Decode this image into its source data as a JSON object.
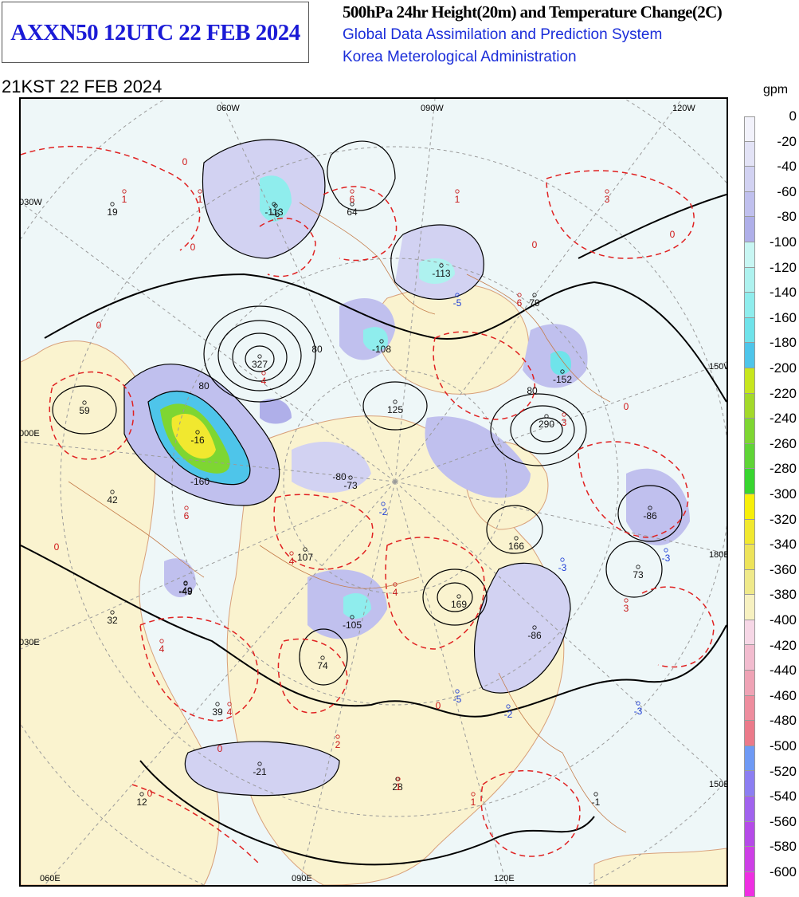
{
  "header": {
    "product_id": "AXXN50 12UTC 22 FEB 2024",
    "title": "500hPa 24hr Height(20m) and Temperature Change(2C)",
    "system": "Global Data Assimilation and Prediction System",
    "agency": "Korea Meterological Administration",
    "valid_time": "21KST 22 FEB 2024"
  },
  "map": {
    "top_lon_labels": [
      "060W",
      "090W",
      "120W"
    ],
    "left_labels": [
      "030W",
      "000E",
      "030E"
    ],
    "right_labels": [
      "150W",
      "180E",
      "150E"
    ],
    "bottom_lon_labels": [
      "060E",
      "090E",
      "120E"
    ],
    "height_change_labels": [
      "-6",
      "-113",
      "64",
      "-113",
      "79",
      "-108",
      "-152",
      "327",
      "125",
      "290",
      "59",
      "-16",
      "-73",
      "-49",
      "-86",
      "42",
      "107",
      "166",
      "73",
      "-49",
      "-105",
      "169",
      "-86",
      "32",
      "74",
      "39",
      "-21",
      "28",
      "12",
      "-1",
      "19"
    ],
    "temperature_change_labels": [
      "1",
      "1",
      "6",
      "1",
      "3",
      "6",
      "-5",
      "4",
      "3",
      "-2",
      "6",
      "4",
      "-3",
      "3",
      "4",
      "4",
      "-3",
      "-5",
      "4",
      "-2",
      "-3",
      "2",
      "1",
      "1"
    ],
    "contour_labels": [
      "0",
      "0",
      "0",
      "0",
      "0",
      "0",
      "0",
      "0",
      "0",
      "0",
      "80",
      "80",
      "80",
      "-80",
      "-160"
    ]
  },
  "colorbar": {
    "unit": "gpm",
    "levels": [
      "0",
      "-20",
      "-40",
      "-60",
      "-80",
      "-100",
      "-120",
      "-140",
      "-160",
      "-180",
      "-200",
      "-220",
      "-240",
      "-260",
      "-280",
      "-300",
      "-320",
      "-340",
      "-360",
      "-380",
      "-400",
      "-420",
      "-440",
      "-460",
      "-480",
      "-500",
      "-520",
      "-540",
      "-560",
      "-580",
      "-600"
    ],
    "colors": [
      "#f2f2fb",
      "#e3e3f6",
      "#d2d2f2",
      "#c0c0ee",
      "#afafe9",
      "#c8f6f3",
      "#aef2ef",
      "#8feded",
      "#6fe3ea",
      "#4ec5ea",
      "#c7e61e",
      "#a3d92a",
      "#7ed632",
      "#5fd436",
      "#38d52f",
      "#f7ef0a",
      "#f1e82f",
      "#ede35a",
      "#efe98a",
      "#f7f1c1",
      "#f6d7e6",
      "#f2bccf",
      "#efa3b5",
      "#ee8d9e",
      "#eb7a8a",
      "#6f9af5",
      "#8c7ef2",
      "#a163ee",
      "#b54be8",
      "#cd3fe6",
      "#ee2fe2"
    ]
  }
}
